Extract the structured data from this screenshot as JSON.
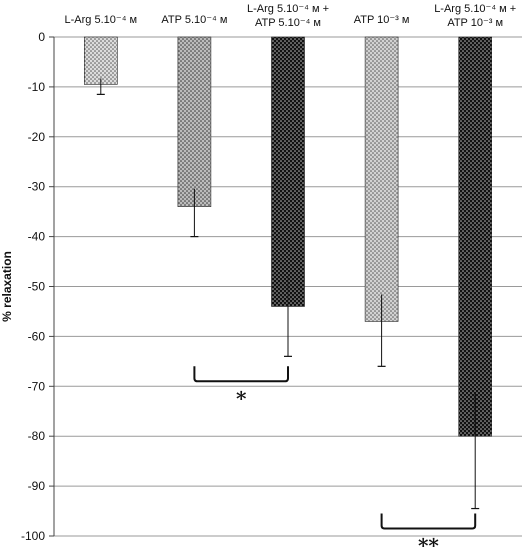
{
  "chart_data": {
    "type": "bar",
    "categories": [
      [
        "L-Arg 5.10⁻⁴ м"
      ],
      [
        "ATP 5.10⁻⁴ м"
      ],
      [
        "L-Arg 5.10⁻⁴ м +",
        "ATP 5.10⁻⁴ м"
      ],
      [
        "ATP 10⁻³ м"
      ],
      [
        "L-Arg 5.10⁻⁴ м +",
        "ATP 10⁻³ м"
      ]
    ],
    "values": [
      -9.5,
      -34,
      -54,
      -57,
      -80
    ],
    "errors": [
      2,
      6,
      10,
      9,
      14.5
    ],
    "bar_colors": [
      "#dcdcdc",
      "#bcbcbc",
      "#111111",
      "#d2d2d2",
      "#111111"
    ],
    "dot_colors": [
      "#555555",
      "#333333",
      "#bdbdbd",
      "#555555",
      "#bdbdbd"
    ],
    "ylabel": "% relaxation",
    "ylim": [
      -100,
      0
    ],
    "yticks": [
      0,
      -10,
      -20,
      -30,
      -40,
      -50,
      -60,
      -70,
      -80,
      -90,
      -100
    ],
    "grid": true,
    "significance": [
      {
        "from": 1,
        "to": 2,
        "y": -69,
        "label": "*"
      },
      {
        "from": 3,
        "to": 4,
        "y": -98.5,
        "label": "**"
      }
    ]
  }
}
